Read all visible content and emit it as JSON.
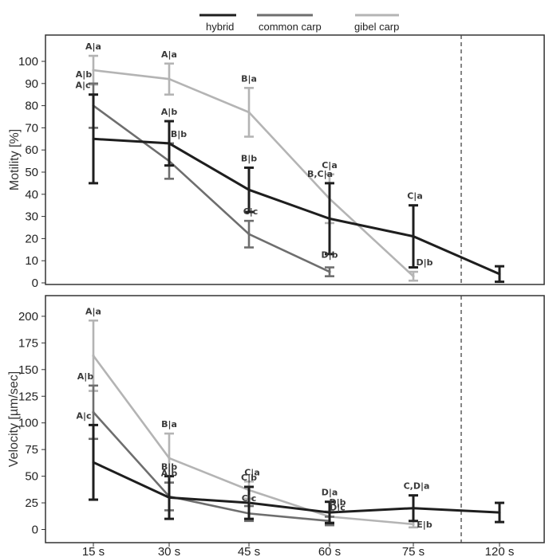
{
  "chart_data": {
    "type": "line",
    "legend": {
      "placement": "top-center",
      "entries": [
        {
          "label": "hybrid",
          "color": "#1e1e1e"
        },
        {
          "label": "common carp",
          "color": "#6e6e6e"
        },
        {
          "label": "gibel carp",
          "color": "#b4b4b4"
        }
      ]
    },
    "categories": [
      "15 s",
      "30 s",
      "45 s",
      "60 s",
      "75 s",
      "120 s"
    ],
    "divider_after": "75 s",
    "panels": [
      {
        "id": "motility",
        "ylabel": "Motility [%]",
        "ylim": [
          0,
          108
        ],
        "yticks": [
          "0",
          "10",
          "20",
          "30",
          "40",
          "50",
          "60",
          "70",
          "80",
          "90",
          "100"
        ],
        "series": [
          {
            "name": "hybrid",
            "points": [
              {
                "x": "15 s",
                "y": 65,
                "err": 20,
                "label": "A|c"
              },
              {
                "x": "30 s",
                "y": 63,
                "err": 10,
                "label": "A|b"
              },
              {
                "x": "45 s",
                "y": 42,
                "err": 10,
                "label": "B|b"
              },
              {
                "x": "60 s",
                "y": 29,
                "err": 16,
                "label": "B,C|a"
              },
              {
                "x": "75 s",
                "y": 21,
                "err": 14,
                "label": "C|a"
              },
              {
                "x": "120 s",
                "y": 4,
                "err": 3.5,
                "label": ""
              }
            ]
          },
          {
            "name": "common carp",
            "points": [
              {
                "x": "15 s",
                "y": 80,
                "err": 10,
                "label": "A|b"
              },
              {
                "x": "30 s",
                "y": 55,
                "err": 8,
                "label": "B|b"
              },
              {
                "x": "45 s",
                "y": 22,
                "err": 6,
                "label": "C|c"
              },
              {
                "x": "60 s",
                "y": 5,
                "err": 2,
                "label": "D|b"
              },
              {
                "x": "75 s",
                "y": null,
                "err": null,
                "label": ""
              }
            ]
          },
          {
            "name": "gibel carp",
            "points": [
              {
                "x": "15 s",
                "y": 96,
                "err": 6.5,
                "label": "A|a"
              },
              {
                "x": "30 s",
                "y": 92,
                "err": 7,
                "label": "A|a"
              },
              {
                "x": "45 s",
                "y": 77,
                "err": 11,
                "label": "B|a"
              },
              {
                "x": "60 s",
                "y": 38,
                "err": 11,
                "label": "C|a"
              },
              {
                "x": "75 s",
                "y": 3,
                "err": 2,
                "label": "D|b"
              }
            ]
          }
        ]
      },
      {
        "id": "velocity",
        "ylabel": "Velocity [µm/sec]",
        "ylim": [
          -6,
          212
        ],
        "yticks": [
          "0",
          "25",
          "50",
          "75",
          "100",
          "125",
          "150",
          "175",
          "200"
        ],
        "series": [
          {
            "name": "hybrid",
            "points": [
              {
                "x": "15 s",
                "y": 63,
                "err": 35,
                "label": "A|c"
              },
              {
                "x": "30 s",
                "y": 30,
                "err": 20,
                "label": "B|b"
              },
              {
                "x": "45 s",
                "y": 25,
                "err": 15,
                "label": "C|b"
              },
              {
                "x": "60 s",
                "y": 16,
                "err": 10,
                "label": "D|a"
              },
              {
                "x": "75 s",
                "y": 20,
                "err": 12,
                "label": "C,D|a"
              },
              {
                "x": "120 s",
                "y": 16,
                "err": 9,
                "label": ""
              }
            ]
          },
          {
            "name": "common carp",
            "points": [
              {
                "x": "15 s",
                "y": 110,
                "err": 25,
                "label": "A|b"
              },
              {
                "x": "30 s",
                "y": 31,
                "err": 13,
                "label": "A|b"
              },
              {
                "x": "45 s",
                "y": 15,
                "err": 7,
                "label": "C|c"
              },
              {
                "x": "60 s",
                "y": 8,
                "err": 4,
                "label": "D|c"
              },
              {
                "x": "75 s",
                "y": null,
                "err": null,
                "label": ""
              }
            ]
          },
          {
            "name": "gibel carp",
            "points": [
              {
                "x": "15 s",
                "y": 163,
                "err": 33,
                "label": "A|a"
              },
              {
                "x": "30 s",
                "y": 67,
                "err": 23,
                "label": "B|a"
              },
              {
                "x": "45 s",
                "y": 37,
                "err": 8,
                "label": "C|a"
              },
              {
                "x": "60 s",
                "y": 12,
                "err": 5,
                "label": "D|b"
              },
              {
                "x": "75 s",
                "y": 5,
                "err": 3,
                "label": "E|b"
              }
            ]
          }
        ]
      }
    ]
  }
}
